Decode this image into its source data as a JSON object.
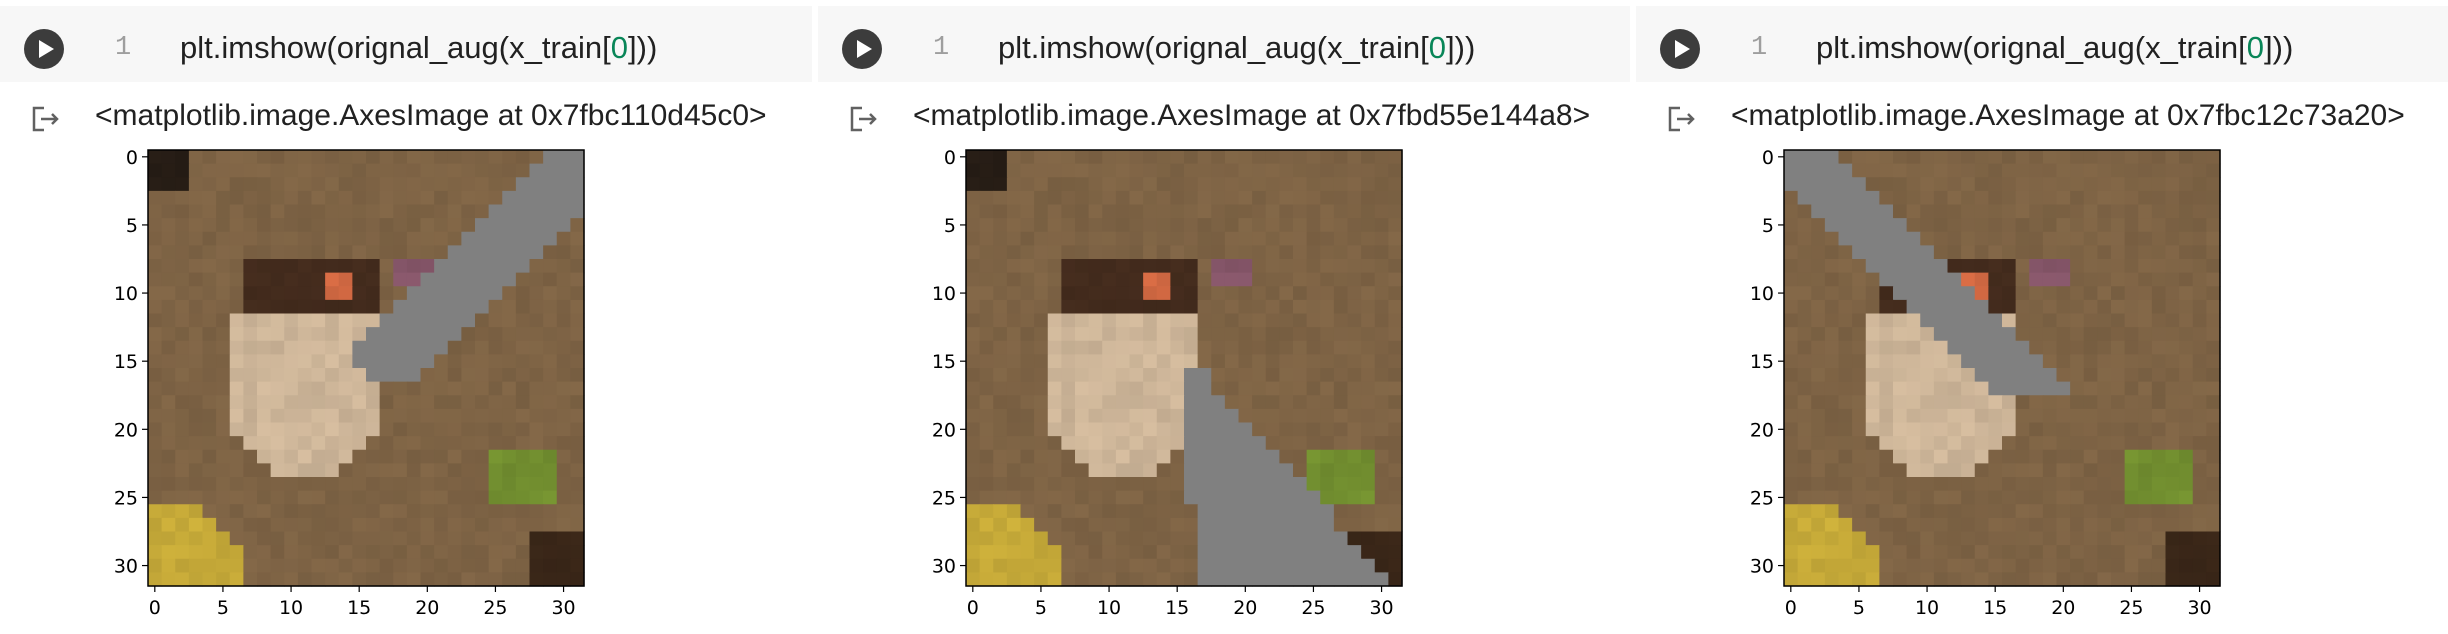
{
  "cells": [
    {
      "line_number": "1",
      "code_prefix": "plt.imshow(orignal_aug(x_train[",
      "code_index": "0",
      "code_suffix": "]))",
      "output_text": "<matplotlib.image.AxesImage at 0x7fbc110d45c0>",
      "mask": "upper-right-diagonal"
    },
    {
      "line_number": "1",
      "code_prefix": "plt.imshow(orignal_aug(x_train[",
      "code_index": "0",
      "code_suffix": "]))",
      "output_text": "<matplotlib.image.AxesImage at 0x7fbd55e144a8>",
      "mask": "lower-middle-diagonal"
    },
    {
      "line_number": "1",
      "code_prefix": "plt.imshow(orignal_aug(x_train[",
      "code_index": "0",
      "code_suffix": "]))",
      "output_text": "<matplotlib.image.AxesImage at 0x7fbc12c73a20>",
      "mask": "upper-left-diagonal"
    }
  ],
  "axes": {
    "y_ticks": [
      "0",
      "5",
      "10",
      "15",
      "20",
      "25",
      "30"
    ],
    "x_ticks": [
      "0",
      "5",
      "10",
      "15",
      "20",
      "25",
      "30"
    ],
    "range": [
      0,
      31
    ]
  },
  "icons": {
    "run": "play-icon",
    "output": "output-arrow-icon"
  },
  "colors": {
    "code_bg": "#f7f7f7",
    "run_btn": "#3c3c3c",
    "number_literal": "#098658",
    "mask_gray": "#808080"
  }
}
